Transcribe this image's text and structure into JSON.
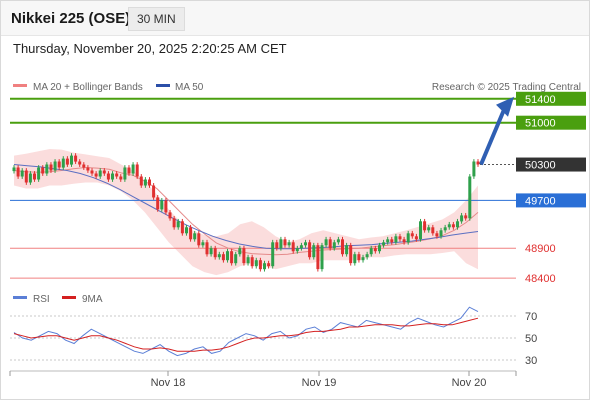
{
  "header": {
    "instrument": "Nikkei 225 (OSE)",
    "timeframe": "30 MIN",
    "datetime": "Thursday, November 20, 2025 2:20:25 AM CET",
    "credit": "Research © 2025 Trading Central"
  },
  "legend": {
    "ma20": "MA 20 + Bollinger Bands",
    "ma50": "MA 50",
    "rsi": "RSI",
    "ma9": "9MA"
  },
  "colors": {
    "up": "#2ea04b",
    "down": "#e03030",
    "bollinger_fill": "#fbd9d9",
    "ma20": "#e58a8a",
    "ma50": "#5b6fc2",
    "resistance": "#4a9f0f",
    "support": "#f08080",
    "pivot": "#2a6fd6",
    "current": "#333333",
    "rsi": "#5b7fd6",
    "rsi_ma": "#d42020"
  },
  "chart_data": [
    {
      "type": "candlestick",
      "title": "",
      "xlabel": "",
      "ylabel": "",
      "x_ticks": [
        "Nov 18",
        "Nov 19",
        "Nov 20"
      ],
      "ylim": [
        48300,
        51500
      ],
      "grid": false,
      "price_axis_labels": [
        "51400",
        "51000",
        "50300",
        "49700",
        "48900",
        "48400"
      ],
      "levels": [
        {
          "name": "resistance-2",
          "value": 51400,
          "kind": "resistance"
        },
        {
          "name": "resistance-1",
          "value": 51000,
          "kind": "resistance"
        },
        {
          "name": "current",
          "value": 50300,
          "kind": "current"
        },
        {
          "name": "pivot",
          "value": 49700,
          "kind": "pivot"
        },
        {
          "name": "support-1",
          "value": 48900,
          "kind": "support"
        },
        {
          "name": "support-2",
          "value": 48400,
          "kind": "support"
        }
      ],
      "series": [
        {
          "name": "Price",
          "close": [
            50250,
            50100,
            50200,
            50000,
            50150,
            50050,
            50250,
            50150,
            50300,
            50200,
            50350,
            50250,
            50400,
            50300,
            50450,
            50350,
            50300,
            50250,
            50200,
            50150,
            50100,
            50200,
            50150,
            50050,
            50150,
            50100,
            50050,
            50250,
            50150,
            50300,
            50100,
            49950,
            50050,
            49950,
            49750,
            49550,
            49700,
            49500,
            49400,
            49250,
            49350,
            49150,
            49250,
            49050,
            49150,
            48950,
            49000,
            48800,
            48900,
            48750,
            48800,
            48700,
            48850,
            48650,
            48800,
            48900,
            48650,
            48750,
            48600,
            48700,
            48550,
            48650,
            48600,
            49000,
            48900,
            49050,
            48950,
            49000,
            48850,
            48900,
            48950,
            49000,
            48750,
            48950,
            48550,
            48950,
            49050,
            48900,
            49000,
            49050,
            48800,
            48950,
            48650,
            48800,
            48700,
            48750,
            48800,
            48900,
            48850,
            48950,
            49000,
            49050,
            49000,
            49100,
            49050,
            49000,
            49150,
            49100,
            49050,
            49350,
            49200,
            49250,
            49150,
            49100,
            49200,
            49250,
            49300,
            49250,
            49350,
            49450,
            49400,
            50100,
            50350,
            50300
          ]
        },
        {
          "name": "MA 20",
          "values": [
            50200,
            50180,
            50170,
            50180,
            50200,
            50230,
            50250,
            50240,
            50220,
            50160,
            50120,
            50020,
            49900,
            49700,
            49500,
            49300,
            49140,
            48990,
            48900,
            48840,
            48810,
            48800,
            48790,
            48800,
            48830,
            48850,
            48870,
            48880,
            48890,
            48900,
            48920,
            48940,
            48960,
            48990,
            49020,
            49060,
            49110,
            49200,
            49330,
            49500
          ]
        },
        {
          "name": "MA 50",
          "values": [
            50300,
            50280,
            50260,
            50230,
            50200,
            50150,
            50080,
            49990,
            49880,
            49760,
            49640,
            49520,
            49400,
            49290,
            49190,
            49100,
            49030,
            48970,
            48930,
            48900,
            48890,
            48890,
            48900,
            48910,
            48920,
            48940,
            48950,
            48960,
            48980,
            49000,
            49020,
            49050,
            49080,
            49120,
            49150,
            49180
          ]
        }
      ],
      "bollinger": {
        "upper": [
          50450,
          50480,
          50520,
          50560,
          50550,
          50500,
          50470,
          50440,
          50410,
          50300,
          50200,
          50030,
          49800,
          49550,
          49340,
          49200,
          49120,
          49100,
          49150,
          49300,
          49350,
          49250,
          49100,
          49000,
          49050,
          49150,
          49200,
          49150,
          49100,
          49050,
          49080,
          49100,
          49150,
          49200,
          49260,
          49320,
          49380,
          49500,
          49700,
          49950
        ],
        "lower": [
          49950,
          49900,
          49900,
          49950,
          49950,
          49980,
          50000,
          50000,
          49950,
          49850,
          49700,
          49500,
          49250,
          49000,
          48800,
          48600,
          48500,
          48450,
          48500,
          48600,
          48650,
          48600,
          48550,
          48600,
          48650,
          48650,
          48700,
          48700,
          48700,
          48700,
          48750,
          48750,
          48780,
          48800,
          48800,
          48800,
          48820,
          48850,
          48650,
          48550
        ]
      },
      "annotation": {
        "label": "arrow",
        "from": 50300,
        "to": 51400
      }
    },
    {
      "type": "line",
      "title": "",
      "ylim": [
        20,
        80
      ],
      "y_ticks": [
        "70",
        "50",
        "30"
      ],
      "series": [
        {
          "name": "RSI",
          "values": [
            55,
            50,
            48,
            52,
            56,
            54,
            48,
            45,
            52,
            58,
            54,
            50,
            46,
            42,
            38,
            36,
            40,
            44,
            38,
            34,
            36,
            40,
            42,
            36,
            38,
            46,
            50,
            54,
            52,
            48,
            54,
            56,
            50,
            52,
            58,
            60,
            55,
            58,
            64,
            62,
            60,
            66,
            64,
            62,
            60,
            58,
            64,
            68,
            65,
            62,
            60,
            64,
            68,
            78,
            74
          ]
        },
        {
          "name": "9MA",
          "values": [
            54,
            52,
            50,
            51,
            52,
            52,
            50,
            48,
            50,
            52,
            52,
            50,
            48,
            45,
            42,
            40,
            40,
            41,
            40,
            38,
            38,
            38,
            39,
            39,
            40,
            42,
            45,
            48,
            50,
            50,
            51,
            52,
            52,
            53,
            55,
            56,
            56,
            57,
            58,
            60,
            60,
            61,
            62,
            62,
            62,
            61,
            61,
            62,
            63,
            63,
            62,
            62,
            64,
            66,
            68
          ]
        }
      ]
    }
  ]
}
